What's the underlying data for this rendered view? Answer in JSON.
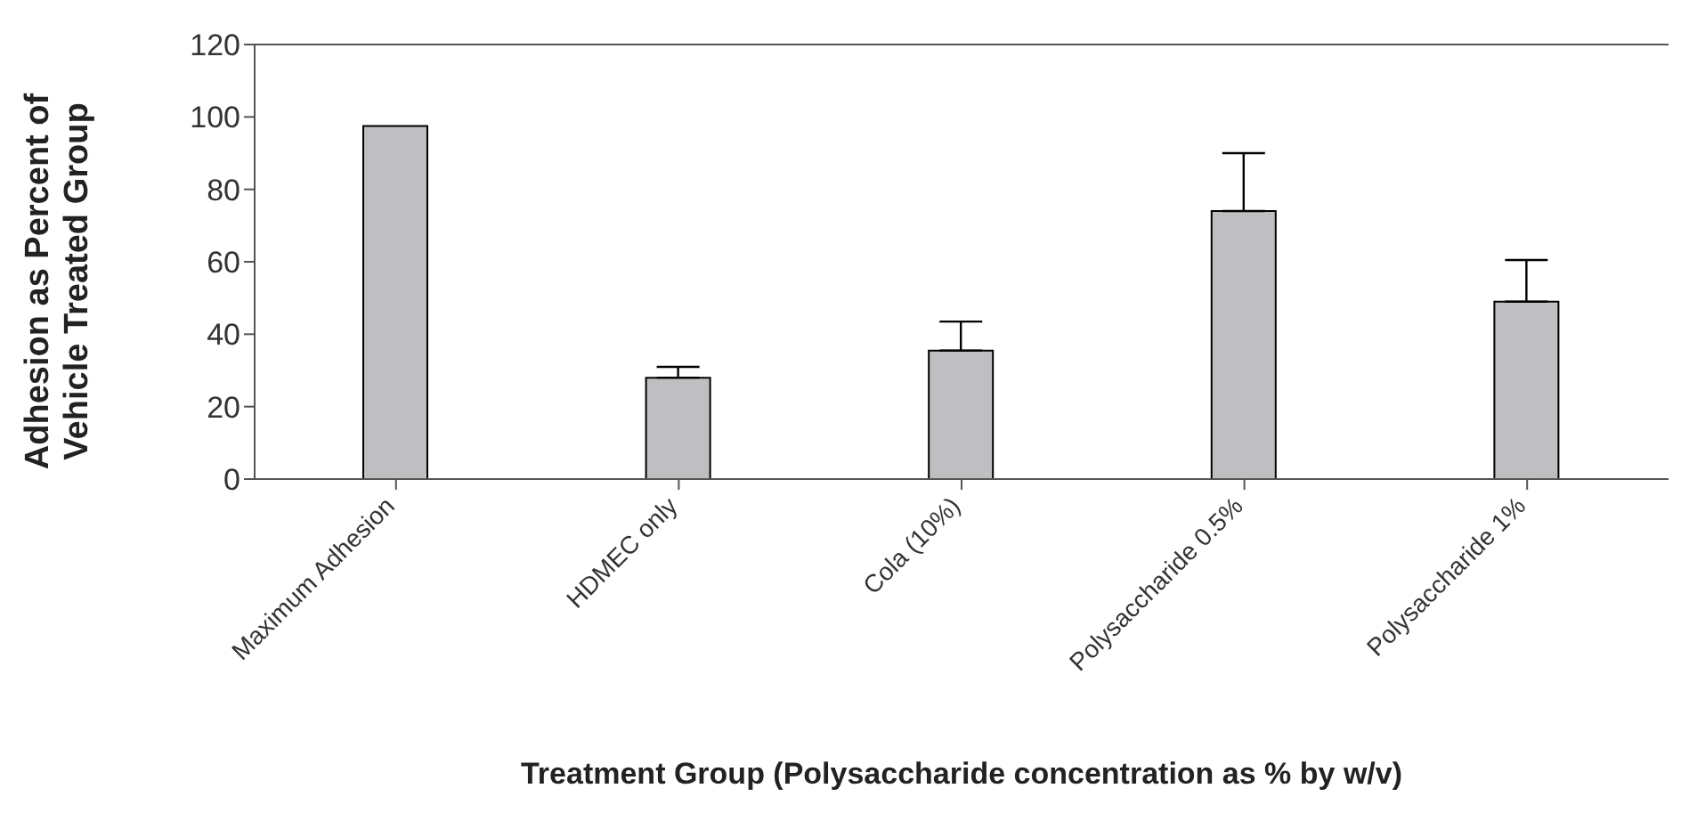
{
  "chart_data": {
    "type": "bar",
    "xlabel": "Treatment Group (Polysaccharide concentration as % by w/v)",
    "ylabel": "Adhesion as Percent of\nVehicle Treated Group",
    "categories": [
      "Maximum Adhesion",
      "HDMEC only",
      "Cola (10%)",
      "Polysaccharide 0.5%",
      "Polysaccharide 1%"
    ],
    "values": [
      97.5,
      28,
      35.5,
      74,
      49
    ],
    "errors": [
      null,
      [
        28,
        31
      ],
      [
        35.5,
        43.5
      ],
      [
        74,
        90
      ],
      [
        49,
        60.5
      ]
    ],
    "color": "#bfbfc1",
    "ylim": [
      0,
      120
    ],
    "yticks": [
      0,
      20,
      40,
      60,
      80,
      100,
      120
    ],
    "grid": false,
    "legend": false
  }
}
